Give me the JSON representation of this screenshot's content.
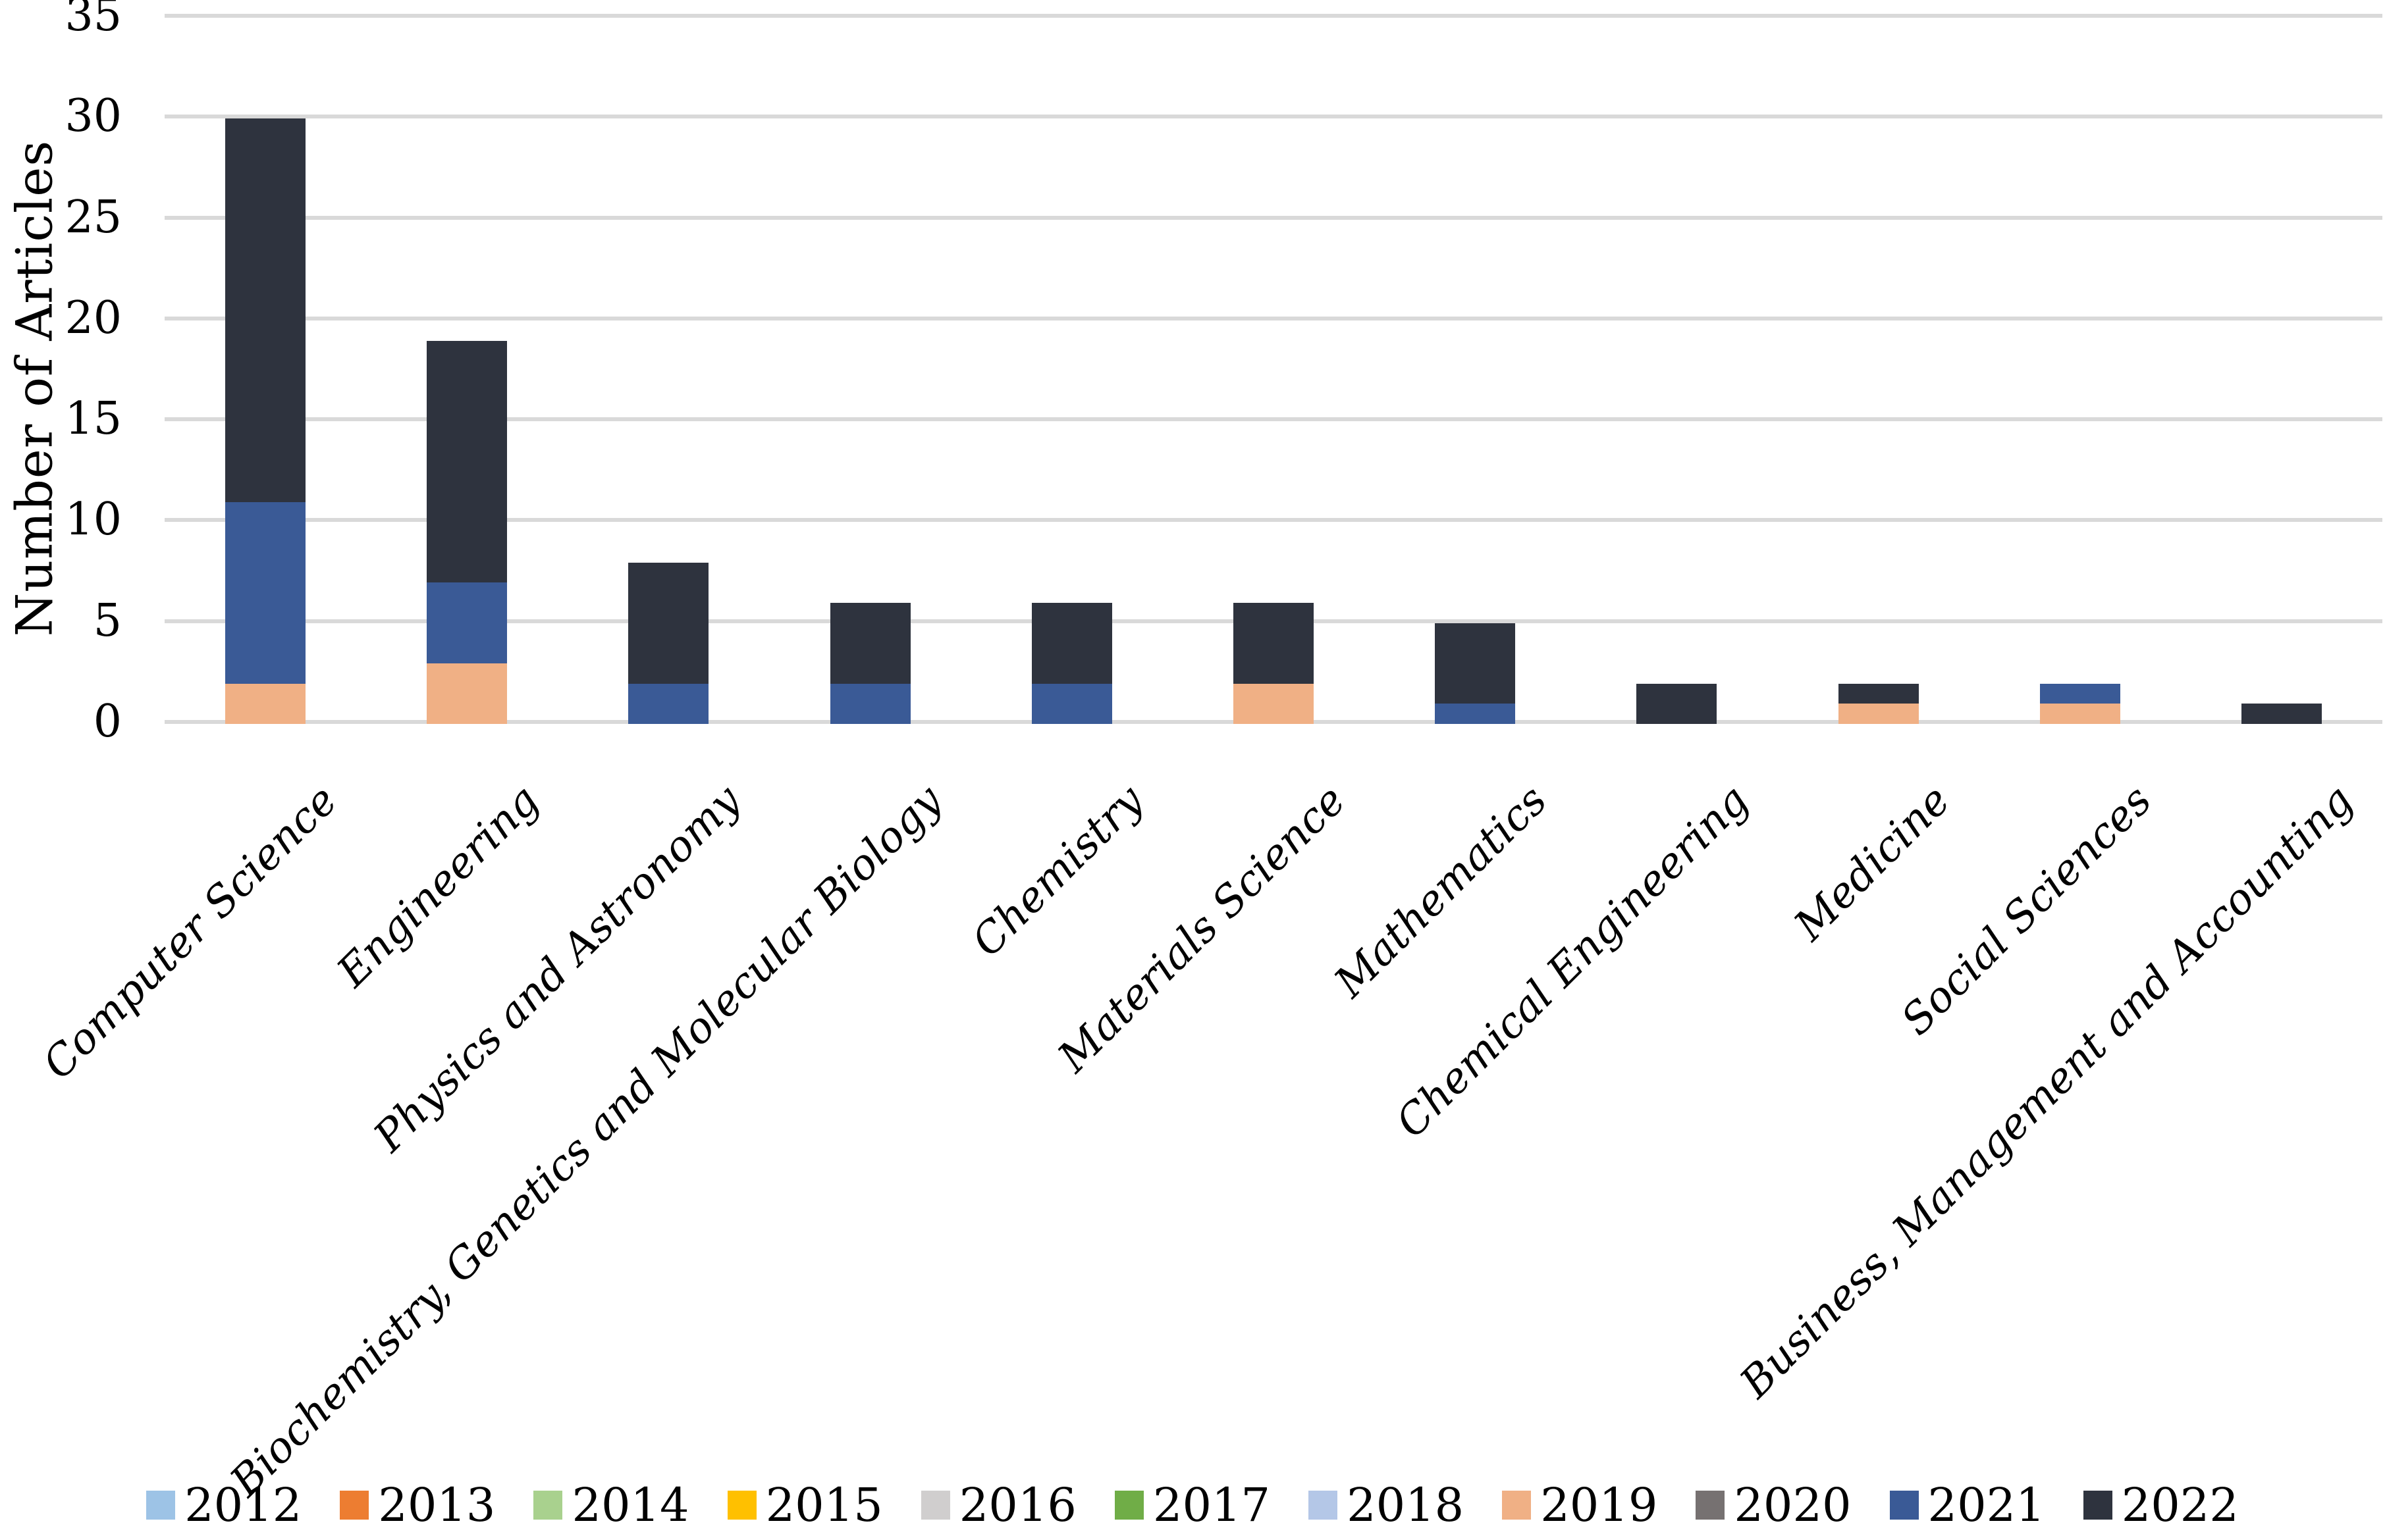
{
  "figure": {
    "background": "#ffffff",
    "gridline_color": "#d9d9d9"
  },
  "chart_data": {
    "type": "bar",
    "stacked": true,
    "title": "",
    "xlabel": "",
    "ylabel": "Number of Articles",
    "ylim": [
      0,
      35
    ],
    "yticks": [
      0,
      5,
      10,
      15,
      20,
      25,
      30,
      35
    ],
    "grid": true,
    "legend_position": "bottom",
    "categories": [
      "Computer Science",
      "Engineering",
      "Physics and Astronomy",
      "Biochemistry, Genetics and Molecular Biology",
      "Chemistry",
      "Materials Science",
      "Mathematics",
      "Chemical Engineering",
      "Medicine",
      "Social Sciences",
      "Business, Management and Accounting"
    ],
    "series": [
      {
        "name": "2012",
        "color": "#9dc3e6",
        "values": [
          0,
          0,
          0,
          0,
          0,
          0,
          0,
          0,
          0,
          0,
          0
        ]
      },
      {
        "name": "2013",
        "color": "#ed7d31",
        "values": [
          0,
          0,
          0,
          0,
          0,
          0,
          0,
          0,
          0,
          0,
          0
        ]
      },
      {
        "name": "2014",
        "color": "#a9d18e",
        "values": [
          0,
          0,
          0,
          0,
          0,
          0,
          0,
          0,
          0,
          0,
          0
        ]
      },
      {
        "name": "2015",
        "color": "#ffc000",
        "values": [
          0,
          0,
          0,
          0,
          0,
          0,
          0,
          0,
          0,
          0,
          0
        ]
      },
      {
        "name": "2016",
        "color": "#d0cece",
        "values": [
          0,
          0,
          0,
          0,
          0,
          0,
          0,
          0,
          0,
          0,
          0
        ]
      },
      {
        "name": "2017",
        "color": "#70ad47",
        "values": [
          0,
          0,
          0,
          0,
          0,
          0,
          0,
          0,
          0,
          0,
          0
        ]
      },
      {
        "name": "2018",
        "color": "#b4c7e7",
        "values": [
          0,
          0,
          0,
          0,
          0,
          0,
          0,
          0,
          0,
          0,
          0
        ]
      },
      {
        "name": "2019",
        "color": "#f0b085",
        "values": [
          2,
          3,
          0,
          0,
          0,
          2,
          0,
          0,
          1,
          1,
          0
        ]
      },
      {
        "name": "2020",
        "color": "#767171",
        "values": [
          0,
          0,
          0,
          0,
          0,
          0,
          0,
          0,
          0,
          0,
          0
        ]
      },
      {
        "name": "2021",
        "color": "#3a5a96",
        "values": [
          9,
          4,
          2,
          2,
          2,
          0,
          1,
          0,
          0,
          1,
          0
        ]
      },
      {
        "name": "2022",
        "color": "#2e333e",
        "values": [
          19,
          12,
          6,
          4,
          4,
          4,
          4,
          2,
          1,
          0,
          1
        ]
      }
    ],
    "stack_totals": [
      30,
      19,
      8,
      6,
      6,
      6,
      5,
      2,
      2,
      2,
      1
    ]
  }
}
